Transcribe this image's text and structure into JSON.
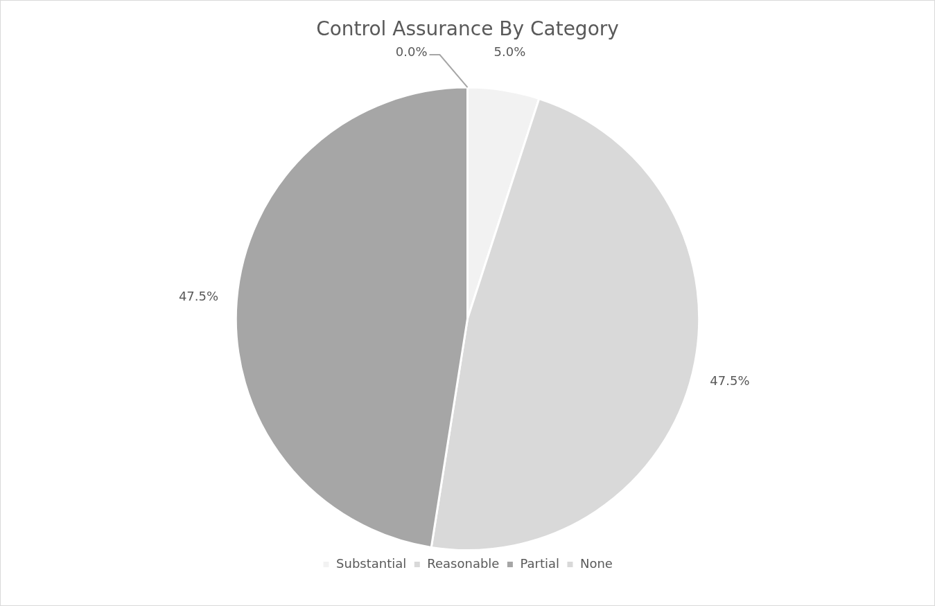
{
  "chart_data": {
    "type": "pie",
    "title": "Control Assurance By Category",
    "categories": [
      "Substantial",
      "Reasonable",
      "Partial",
      "None"
    ],
    "values": [
      5.0,
      47.5,
      47.5,
      0.0
    ],
    "colors": [
      "#f2f2f2",
      "#d9d9d9",
      "#a6a6a6",
      "#d9d9d9"
    ],
    "value_labels": [
      "5.0%",
      "47.5%",
      "47.5%",
      "0.0%"
    ],
    "legend": "bottom"
  }
}
